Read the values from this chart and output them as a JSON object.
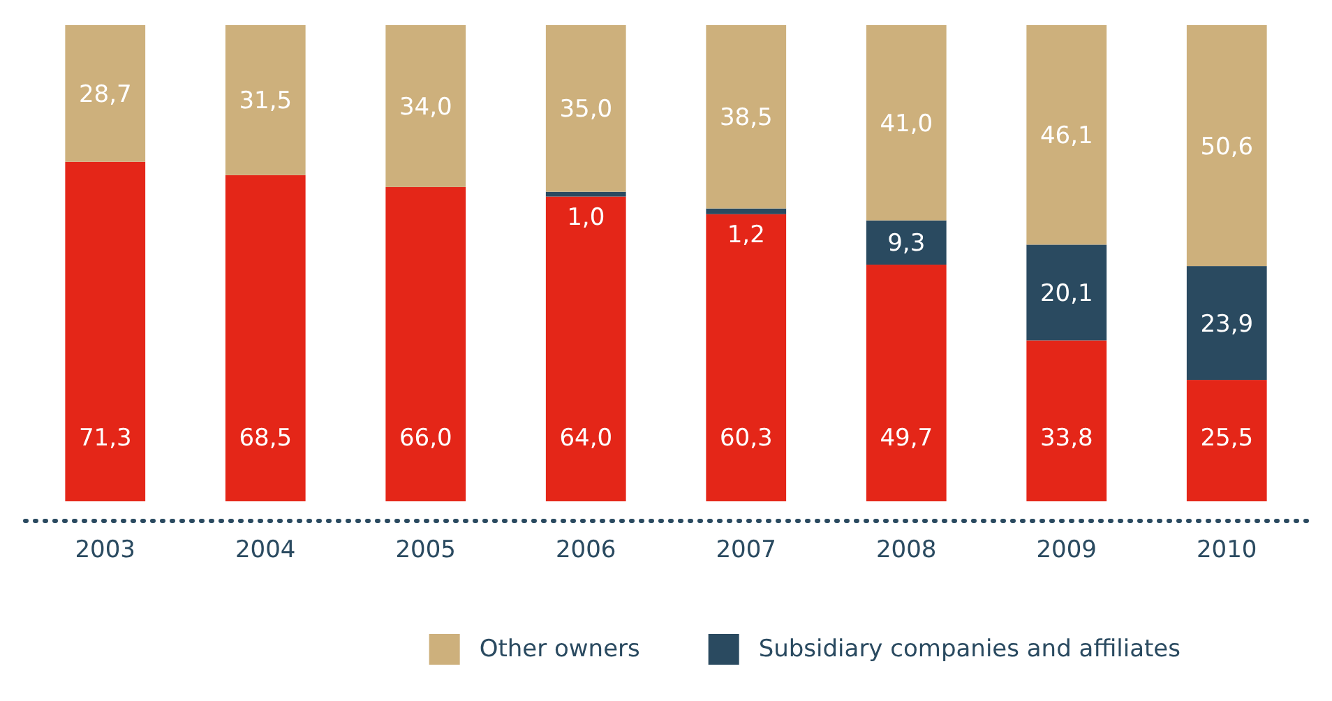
{
  "chart_data": {
    "type": "bar",
    "stacked": true,
    "legend": "bottom",
    "categories": [
      "2003",
      "2004",
      "2005",
      "2006",
      "2007",
      "2008",
      "2009",
      "2010"
    ],
    "series": [
      {
        "color": "#e42618",
        "values": [
          71.3,
          68.5,
          66.0,
          64.0,
          60.3,
          49.7,
          33.8,
          25.5
        ],
        "value_labels": [
          "71,3",
          "68,5",
          "66,0",
          "64,0",
          "60,3",
          "49,7",
          "33,8",
          "25,5"
        ]
      },
      {
        "name": "Subsidiary companies and affiliates",
        "color": "#2a4a60",
        "values": [
          null,
          null,
          null,
          1.0,
          1.2,
          9.3,
          20.1,
          23.9
        ],
        "value_labels": [
          null,
          null,
          null,
          "1,0",
          "1,2",
          "9,3",
          "20,1",
          "23,9"
        ]
      },
      {
        "name": "Other owners",
        "color": "#cdb07c",
        "values": [
          28.7,
          31.5,
          34.0,
          35.0,
          38.5,
          41.0,
          46.1,
          50.6
        ],
        "value_labels": [
          "28,7",
          "31,5",
          "34,0",
          "35,0",
          "38,5",
          "41,0",
          "46,1",
          "50,6"
        ]
      }
    ]
  }
}
